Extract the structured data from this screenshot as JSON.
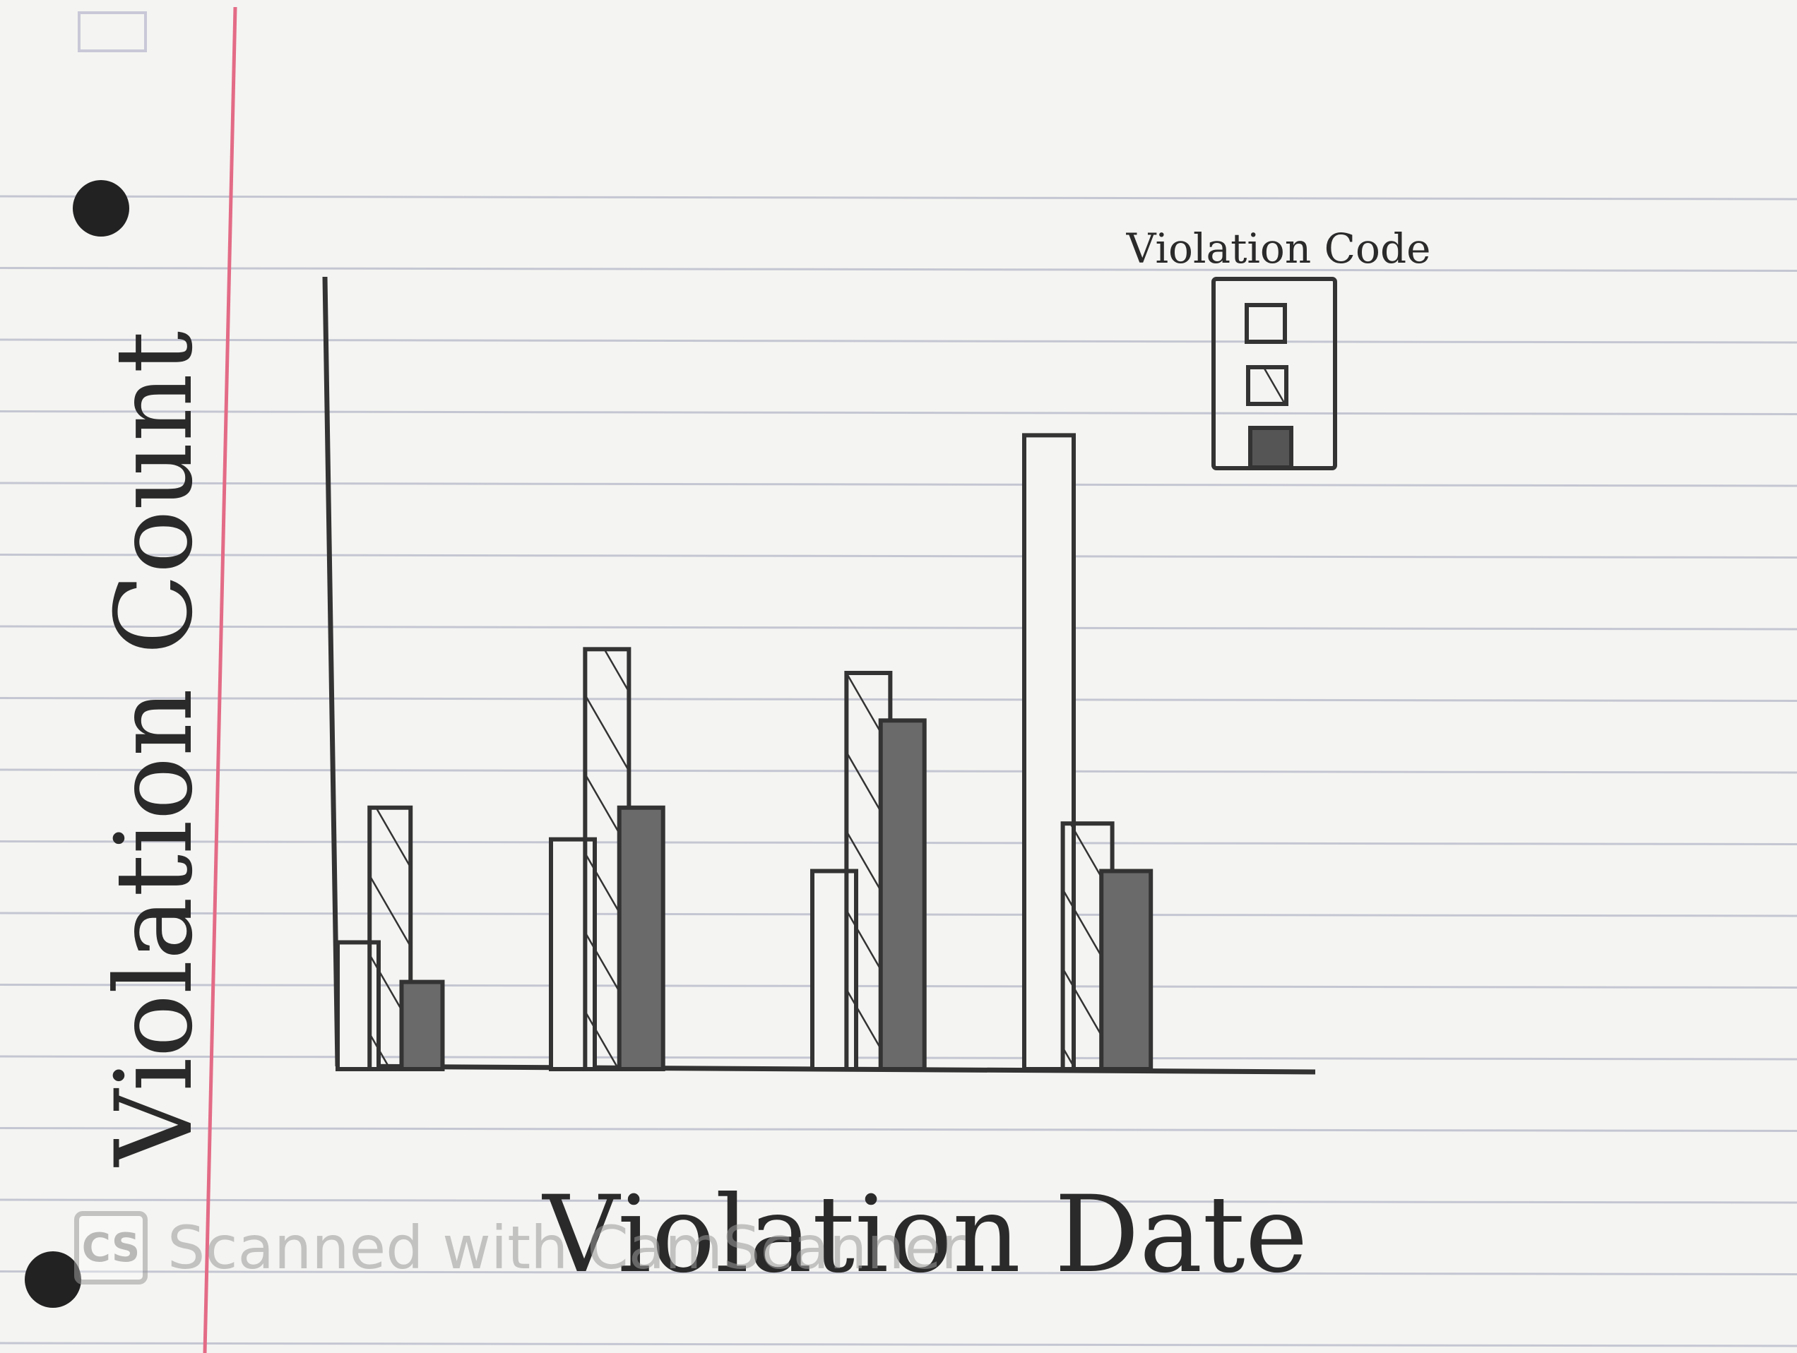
{
  "chart_data": {
    "type": "bar",
    "title": "",
    "xlabel": "Violation Date",
    "ylabel": "Violation Count",
    "categories": [
      "",
      "",
      "",
      ""
    ],
    "ylim": [
      0,
      10
    ],
    "legend": {
      "title": "Violation Code",
      "placement": "top-right",
      "entries": [
        "",
        "",
        ""
      ]
    },
    "series": [
      {
        "style": "empty",
        "values": [
          1.6,
          2.9,
          2.5,
          8.0
        ]
      },
      {
        "style": "hatched",
        "values": [
          3.3,
          5.3,
          5.0,
          3.1
        ]
      },
      {
        "style": "shaded",
        "values": [
          1.1,
          3.3,
          4.4,
          2.5
        ]
      }
    ]
  },
  "watermark": {
    "logo": "CS",
    "text": "Scanned with CamScanner"
  }
}
